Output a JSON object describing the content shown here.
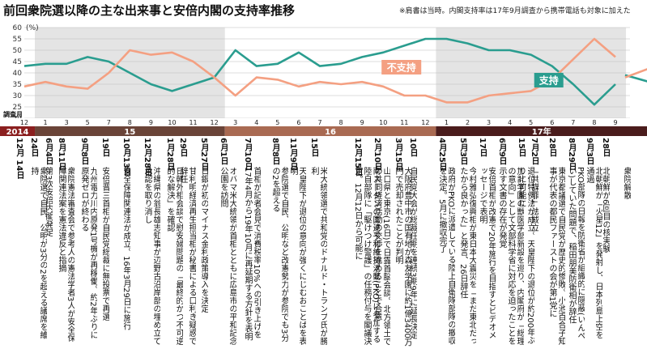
{
  "title": "前回衆院選以降の主な出来事と安倍内閣の支持率推移",
  "note": "※肩書は当時。内閣支持率は17年9月調査から携帯電話も対象に加えた",
  "chart_data": {
    "type": "line",
    "ylabel": "(%)",
    "ylim": [
      20,
      60
    ],
    "yticks": [
      20,
      25,
      30,
      35,
      40,
      45,
      50,
      55,
      60
    ],
    "survey_label": "調査月",
    "x_months": [
      "12",
      "1",
      "3",
      "5",
      "7",
      "8",
      "9",
      "10",
      "11",
      "12",
      "3",
      "4",
      "5",
      "6",
      "7",
      "8",
      "9",
      "10",
      "11",
      "12",
      "1",
      "2",
      "3",
      "4",
      "5",
      "6",
      "7",
      "8",
      "9"
    ],
    "year_bands": [
      {
        "label": "2014",
        "start": 0,
        "end": 1
      },
      {
        "label": "15",
        "start": 1,
        "end": 10
      },
      {
        "label": "16",
        "start": 10,
        "end": 20
      },
      {
        "label": "17年",
        "start": 20,
        "end": 29
      }
    ],
    "series": [
      {
        "name": "支持",
        "color": "#2a9d8f",
        "values": [
          43,
          44,
          44,
          47,
          45,
          40,
          35,
          32,
          35,
          38,
          50,
          43,
          44,
          49,
          43,
          44,
          47,
          49,
          52,
          55,
          55,
          53,
          50,
          50,
          48,
          43,
          35,
          26,
          35
        ],
        "tail": [
          39,
          36
        ]
      },
      {
        "name": "不支持",
        "color": "#f4a082",
        "values": [
          34,
          36,
          34,
          33,
          40,
          50,
          48,
          49,
          45,
          38,
          30,
          38,
          37,
          34,
          36,
          35,
          36,
          34,
          30,
          30,
          27,
          27,
          30,
          31,
          32,
          37,
          46,
          55,
          47
        ],
        "tail": [
          38,
          42
        ]
      }
    ],
    "legend_placement": "inline labels"
  },
  "events": [
    {
      "date": "12月 14日",
      "text": ""
    },
    {
      "date": "24日",
      "text": "衆院選で自民、公明が3分の2を超える議席を維持"
    },
    {
      "date": "6月4日",
      "text": "第3次安倍内閣発足"
    },
    {
      "date": "8月11日",
      "text": "衆院憲法審査会で参考人の憲法学者3人が安全保障関連法案を憲法違反と指摘"
    },
    {
      "date": "9月8日",
      "text": "九州電力川内原発1号機が再稼働。約2年ぶりに原発ゼロが終わる"
    },
    {
      "date": "19日",
      "text": "安倍晋三首相が自民党総裁に無投票で再選"
    },
    {
      "date": "10月13日",
      "text": "安全保障関連法が成立。16年3月29日に施行"
    },
    {
      "date": "12月28日",
      "text": "沖縄県の翁長雄志知事が辺野古沿岸部の埋め立て承認を取り消し"
    },
    {
      "date": "1月28日",
      "text": "日韓外相会談で慰安婦問題の「最終的かつ不可逆的な解決」を確認"
    },
    {
      "date": "29日",
      "text": "甘利明経済再生担当相が秘書による口利き疑惑で辞任"
    },
    {
      "date": "5月27日",
      "text": "日銀が初のマイナス金利政策導入を決定"
    },
    {
      "date": "6月1日",
      "text": "オバマ米大統領が首相とともに広島市の平和記念公園を訪問"
    },
    {
      "date": "7月10日",
      "text": "首相が記者会見で消費税率10%への引き上げを17年4月から19年10月に再延期する方針を表明"
    },
    {
      "date": "8月8日",
      "text": "参院選で自民、公明など改憲勢力が参院でも3分の2を超える"
    },
    {
      "date": "11月9日",
      "text": "天皇陛下が退位の意向が強くにじむおことばを表明"
    },
    {
      "date": "15日",
      "text": "米大統領選で共和党のドナルド・トランプ氏が勝利"
    },
    {
      "date": "12月15日",
      "text": "南スーダンの国連平和維持活動(PKO)に参加する陸自部隊に「駆けつけ警護」の任務付与を閣議決定。12月12日から可能に"
    },
    {
      "date": "2月10日",
      "text": "山口県と東京(16日)で日露首脳会談。北方領土での共同経済活動の交渉を進めることで合意"
    },
    {
      "date": "3月15日",
      "text": "大阪府豊中市の国有地が森友学園に約1億3400万円で売却されたことが判明"
    },
    {
      "date": "10日",
      "text": "自民党大会が総裁任期を連続3期9年に延長決定"
    },
    {
      "date": "4月25日",
      "text": "政府がPKOに派遣している陸上自衛隊部隊の撤収を決定。5月に撤収完了"
    },
    {
      "date": "5月3日",
      "text": "今村雅弘復興相が東日本大震災を「まだ東北だったから良かった」と発言、26日辞任"
    },
    {
      "date": "17日",
      "text": "安倍首相が改憲で20年施行を目指すとビデオメッセージで表明"
    },
    {
      "date": "6月9日",
      "text": "加計学園の獣医学部新設を巡り、内閣府が「総理の意向」として文部科学省に対応を迫ったことを示す文書の存在が発覚"
    },
    {
      "date": "15日",
      "text": "退位特例法が成立。天皇陛下の退位が約200年ぶりに可能に"
    },
    {
      "date": "7月2日",
      "text": "「共謀罪」法成立"
    },
    {
      "date": "28日",
      "text": "東京都議選で自民党が歴史的惨敗。小池百合子知事が代表の都民ファーストの会が第1党に"
    },
    {
      "date": "8月29日",
      "text": "PKO部隊の日報を防衛省が組織的に隠蔽(いんぺい)していた問題で、稲田朋美防衛相が辞任"
    },
    {
      "date": "9月3日",
      "text": "北朝鮮が「火星12」を発射し、日本列島上空を通過"
    },
    {
      "date": "28日",
      "text": "北朝鮮が6回目の核実験"
    },
    {
      "date": "",
      "text": "衆院解散"
    }
  ],
  "event_columns": [
    18,
    36,
    54,
    70,
    98,
    124,
    150,
    176,
    204,
    220,
    246,
    270,
    300,
    334,
    356,
    382,
    436,
    460,
    486,
    504,
    540,
    566,
    590,
    614,
    638,
    654,
    676,
    700,
    722,
    742,
    768
  ]
}
